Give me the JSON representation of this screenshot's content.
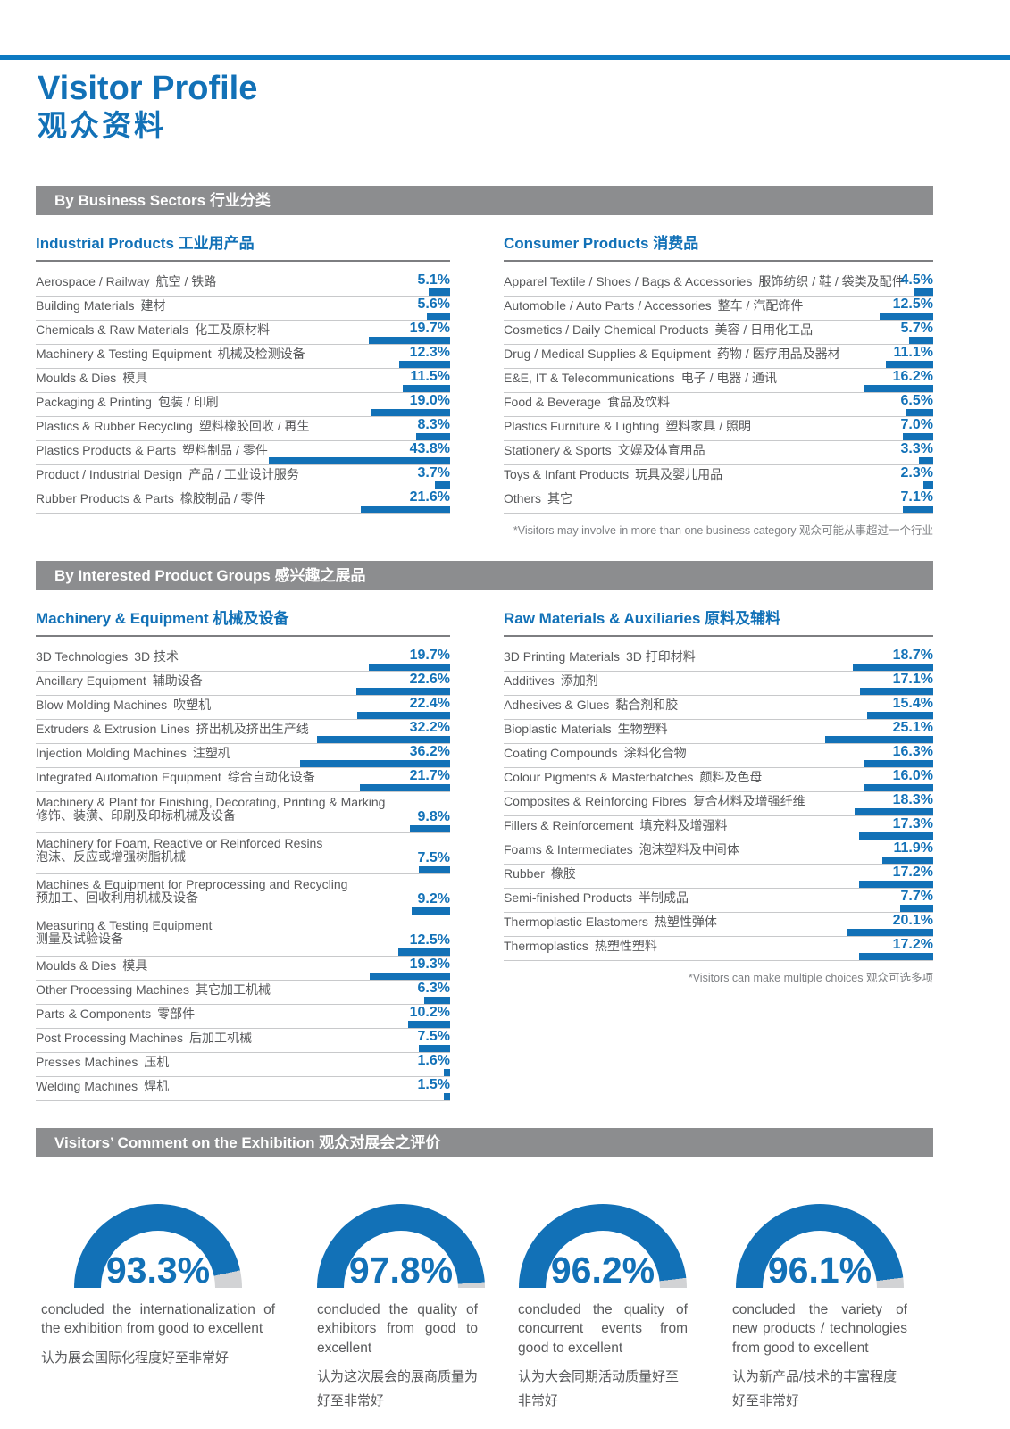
{
  "colors": {
    "accent": "#1271b7",
    "top_rule": "#0d7ac2",
    "banner_bg": "#8c8d8f",
    "gauge_rest": "#d2d3d5",
    "label_gray": "#58595b"
  },
  "header": {
    "title_en": "Visitor Profile",
    "title_zh": "观众资料"
  },
  "business_sectors": {
    "banner": "By Business Sectors 行业分类",
    "footnote": "*Visitors may involve in more than one business category 观众可能从事超过一个行业",
    "columns": [
      {
        "title": "Industrial Products 工业用产品",
        "items": [
          {
            "en": "Aerospace / Railway",
            "zh": "航空 / 铁路",
            "value": 5.1
          },
          {
            "en": "Building Materials",
            "zh": "建材",
            "value": 5.6
          },
          {
            "en": "Chemicals & Raw Materials",
            "zh": "化工及原材料",
            "value": 19.7
          },
          {
            "en": "Machinery & Testing Equipment",
            "zh": "机械及检测设备",
            "value": 12.3
          },
          {
            "en": "Moulds & Dies",
            "zh": "模具",
            "value": 11.5
          },
          {
            "en": "Packaging & Printing",
            "zh": "包装 / 印刷",
            "value": 19.0
          },
          {
            "en": "Plastics & Rubber Recycling",
            "zh": "塑料橡胶回收 / 再生",
            "value": 8.3
          },
          {
            "en": "Plastics Products & Parts",
            "zh": "塑料制品 / 零件",
            "value": 43.8
          },
          {
            "en": "Product / Industrial Design",
            "zh": "产品 / 工业设计服务",
            "value": 3.7
          },
          {
            "en": "Rubber Products & Parts",
            "zh": "橡胶制品 / 零件",
            "value": 21.6
          }
        ]
      },
      {
        "title": "Consumer Products 消费品",
        "items": [
          {
            "en": "Apparel Textile / Shoes / Bags & Accessories",
            "zh": "服饰纺织 / 鞋 / 袋类及配件",
            "value": 4.5
          },
          {
            "en": "Automobile / Auto Parts / Accessories",
            "zh": "整车 / 汽配饰件",
            "value": 12.5
          },
          {
            "en": "Cosmetics / Daily Chemical Products",
            "zh": "美容 / 日用化工品",
            "value": 5.7
          },
          {
            "en": "Drug / Medical Supplies & Equipment",
            "zh": "药物 / 医疗用品及器材",
            "value": 11.1
          },
          {
            "en": "E&E, IT & Telecommunications",
            "zh": "电子 / 电器 / 通讯",
            "value": 16.2
          },
          {
            "en": "Food & Beverage",
            "zh": "食品及饮料",
            "value": 6.5
          },
          {
            "en": "Plastics Furniture & Lighting",
            "zh": "塑料家具 / 照明",
            "value": 7.0
          },
          {
            "en": "Stationery & Sports",
            "zh": "文娱及体育用品",
            "value": 3.3
          },
          {
            "en": "Toys & Infant Products",
            "zh": "玩具及婴儿用品",
            "value": 2.3
          },
          {
            "en": "Others",
            "zh": "其它",
            "value": 7.1
          }
        ]
      }
    ]
  },
  "product_groups": {
    "banner": "By Interested Product Groups 感兴趣之展品",
    "footnote": "*Visitors can make multiple choices 观众可选多项",
    "columns": [
      {
        "title": "Machinery & Equipment 机械及设备",
        "items": [
          {
            "en": "3D Technologies",
            "zh": "3D 技术",
            "value": 19.7
          },
          {
            "en": "Ancillary Equipment",
            "zh": "辅助设备",
            "value": 22.6
          },
          {
            "en": "Blow Molding Machines",
            "zh": "吹塑机",
            "value": 22.4
          },
          {
            "en": "Extruders & Extrusion Lines",
            "zh": "挤出机及挤出生产线",
            "value": 32.2
          },
          {
            "en": "Injection Molding Machines",
            "zh": "注塑机",
            "value": 36.2
          },
          {
            "en": "Integrated Automation Equipment",
            "zh": "综合自动化设备",
            "value": 21.7
          },
          {
            "en": "Machinery & Plant for Finishing, Decorating, Printing & Marking",
            "zh": "修饰、装潢、印刷及印标机械及设备",
            "value": 9.8,
            "two": true
          },
          {
            "en": "Machinery for Foam, Reactive or Reinforced Resins",
            "zh": "泡沫、反应或增强树脂机械",
            "value": 7.5,
            "two": true
          },
          {
            "en": "Machines & Equipment for Preprocessing and Recycling",
            "zh": "预加工、回收利用机械及设备",
            "value": 9.2,
            "two": true
          },
          {
            "en": "Measuring & Testing Equipment",
            "zh": "测量及试验设备",
            "value": 12.5,
            "two": true
          },
          {
            "en": "Moulds & Dies",
            "zh": "模具",
            "value": 19.3
          },
          {
            "en": "Other Processing Machines",
            "zh": "其它加工机械",
            "value": 6.3
          },
          {
            "en": "Parts & Components",
            "zh": "零部件",
            "value": 10.2
          },
          {
            "en": "Post Processing Machines",
            "zh": "后加工机械",
            "value": 7.5
          },
          {
            "en": "Presses Machines",
            "zh": "压机",
            "value": 1.6
          },
          {
            "en": "Welding Machines",
            "zh": "焊机",
            "value": 1.5
          }
        ]
      },
      {
        "title": "Raw Materials & Auxiliaries 原料及辅料",
        "items": [
          {
            "en": "3D Printing Materials",
            "zh": "3D 打印材料",
            "value": 18.7
          },
          {
            "en": "Additives",
            "zh": "添加剂",
            "value": 17.1
          },
          {
            "en": "Adhesives & Glues",
            "zh": "黏合剂和胶",
            "value": 15.4
          },
          {
            "en": "Bioplastic Materials",
            "zh": "生物塑料",
            "value": 25.1
          },
          {
            "en": "Coating Compounds",
            "zh": "涂料化合物",
            "value": 16.3
          },
          {
            "en": "Colour Pigments & Masterbatches",
            "zh": "颜料及色母",
            "value": 16.0
          },
          {
            "en": "Composites & Reinforcing Fibres",
            "zh": "复合材料及增强纤维",
            "value": 18.3
          },
          {
            "en": "Fillers & Reinforcement",
            "zh": "填充料及增强料",
            "value": 17.3
          },
          {
            "en": "Foams & Intermediates",
            "zh": "泡沫塑料及中间体",
            "value": 11.9
          },
          {
            "en": "Rubber",
            "zh": "橡胶",
            "value": 17.2
          },
          {
            "en": "Semi-finished Products",
            "zh": "半制成品",
            "value": 7.7
          },
          {
            "en": "Thermoplastic Elastomers",
            "zh": "热塑性弹体",
            "value": 20.1
          },
          {
            "en": "Thermoplastics",
            "zh": "热塑性塑料",
            "value": 17.2
          }
        ]
      }
    ]
  },
  "comments": {
    "banner": "Visitors’ Comment on the Exhibition 观众对展会之评价",
    "gauges": [
      {
        "value": 93.3,
        "label": "93.3%",
        "caption_en": "concluded the internationalization of the exhibition from good to excellent",
        "caption_zh": "认为展会国际化程度好至非常好"
      },
      {
        "value": 97.8,
        "label": "97.8%",
        "caption_en": "concluded the quality of exhibitors from good to excellent",
        "caption_zh": "认为这次展会的展商质量为好至非常好"
      },
      {
        "value": 96.2,
        "label": "96.2%",
        "caption_en": "concluded the quality of concurrent events from good to excellent",
        "caption_zh": "认为大会同期活动质量好至非常好"
      },
      {
        "value": 96.1,
        "label": "96.1%",
        "caption_en": "concluded the variety of new products / technologies from good to excellent",
        "caption_zh": "认为新产品/技术的丰富程度好至非常好"
      }
    ]
  },
  "chart_data": [
    {
      "type": "bar",
      "title": "By Business Sectors 行业分类 — Industrial Products 工业用产品",
      "categories": [
        "Aerospace / Railway",
        "Building Materials",
        "Chemicals & Raw Materials",
        "Machinery & Testing Equipment",
        "Moulds & Dies",
        "Packaging & Printing",
        "Plastics & Rubber Recycling",
        "Plastics Products & Parts",
        "Product / Industrial Design",
        "Rubber Products & Parts"
      ],
      "values": [
        5.1,
        5.6,
        19.7,
        12.3,
        11.5,
        19.0,
        8.3,
        43.8,
        3.7,
        21.6
      ],
      "unit": "%",
      "xlabel": "",
      "ylabel": "",
      "xlim": [
        0,
        100
      ],
      "grid": false,
      "legend": false
    },
    {
      "type": "bar",
      "title": "By Business Sectors 行业分类 — Consumer Products 消费品",
      "categories": [
        "Apparel Textile / Shoes / Bags & Accessories",
        "Automobile / Auto Parts / Accessories",
        "Cosmetics / Daily Chemical Products",
        "Drug / Medical Supplies & Equipment",
        "E&E, IT & Telecommunications",
        "Food & Beverage",
        "Plastics Furniture & Lighting",
        "Stationery & Sports",
        "Toys & Infant Products",
        "Others"
      ],
      "values": [
        4.5,
        12.5,
        5.7,
        11.1,
        16.2,
        6.5,
        7.0,
        3.3,
        2.3,
        7.1
      ],
      "unit": "%",
      "xlabel": "",
      "ylabel": "",
      "xlim": [
        0,
        100
      ],
      "grid": false,
      "legend": false
    },
    {
      "type": "bar",
      "title": "By Interested Product Groups 感兴趣之展品 — Machinery & Equipment 机械及设备",
      "categories": [
        "3D Technologies",
        "Ancillary Equipment",
        "Blow Molding Machines",
        "Extruders & Extrusion Lines",
        "Injection Molding Machines",
        "Integrated Automation Equipment",
        "Machinery & Plant for Finishing, Decorating, Printing & Marking",
        "Machinery for Foam, Reactive or Reinforced Resins",
        "Machines & Equipment for Preprocessing and Recycling",
        "Measuring & Testing Equipment",
        "Moulds & Dies",
        "Other Processing Machines",
        "Parts & Components",
        "Post Processing Machines",
        "Presses Machines",
        "Welding Machines"
      ],
      "values": [
        19.7,
        22.6,
        22.4,
        32.2,
        36.2,
        21.7,
        9.8,
        7.5,
        9.2,
        12.5,
        19.3,
        6.3,
        10.2,
        7.5,
        1.6,
        1.5
      ],
      "unit": "%",
      "xlabel": "",
      "ylabel": "",
      "xlim": [
        0,
        100
      ],
      "grid": false,
      "legend": false
    },
    {
      "type": "bar",
      "title": "By Interested Product Groups 感兴趣之展品 — Raw Materials & Auxiliaries 原料及辅料",
      "categories": [
        "3D Printing Materials",
        "Additives",
        "Adhesives & Glues",
        "Bioplastic Materials",
        "Coating Compounds",
        "Colour Pigments & Masterbatches",
        "Composites & Reinforcing Fibres",
        "Fillers & Reinforcement",
        "Foams & Intermediates",
        "Rubber",
        "Semi-finished Products",
        "Thermoplastic Elastomers",
        "Thermoplastics"
      ],
      "values": [
        18.7,
        17.1,
        15.4,
        25.1,
        16.3,
        16.0,
        18.3,
        17.3,
        11.9,
        17.2,
        7.7,
        20.1,
        17.2
      ],
      "unit": "%",
      "xlabel": "",
      "ylabel": "",
      "xlim": [
        0,
        100
      ],
      "grid": false,
      "legend": false
    },
    {
      "type": "pie",
      "title": "Visitors’ Comment on the Exhibition 观众对展会之评价 (half-donut gauges)",
      "categories": [
        "internationalization of the exhibition good to excellent",
        "quality of exhibitors good to excellent",
        "quality of concurrent events good to excellent",
        "variety of new products / technologies good to excellent"
      ],
      "values": [
        93.3,
        97.8,
        96.2,
        96.1
      ],
      "unit": "%",
      "legend": false
    }
  ]
}
